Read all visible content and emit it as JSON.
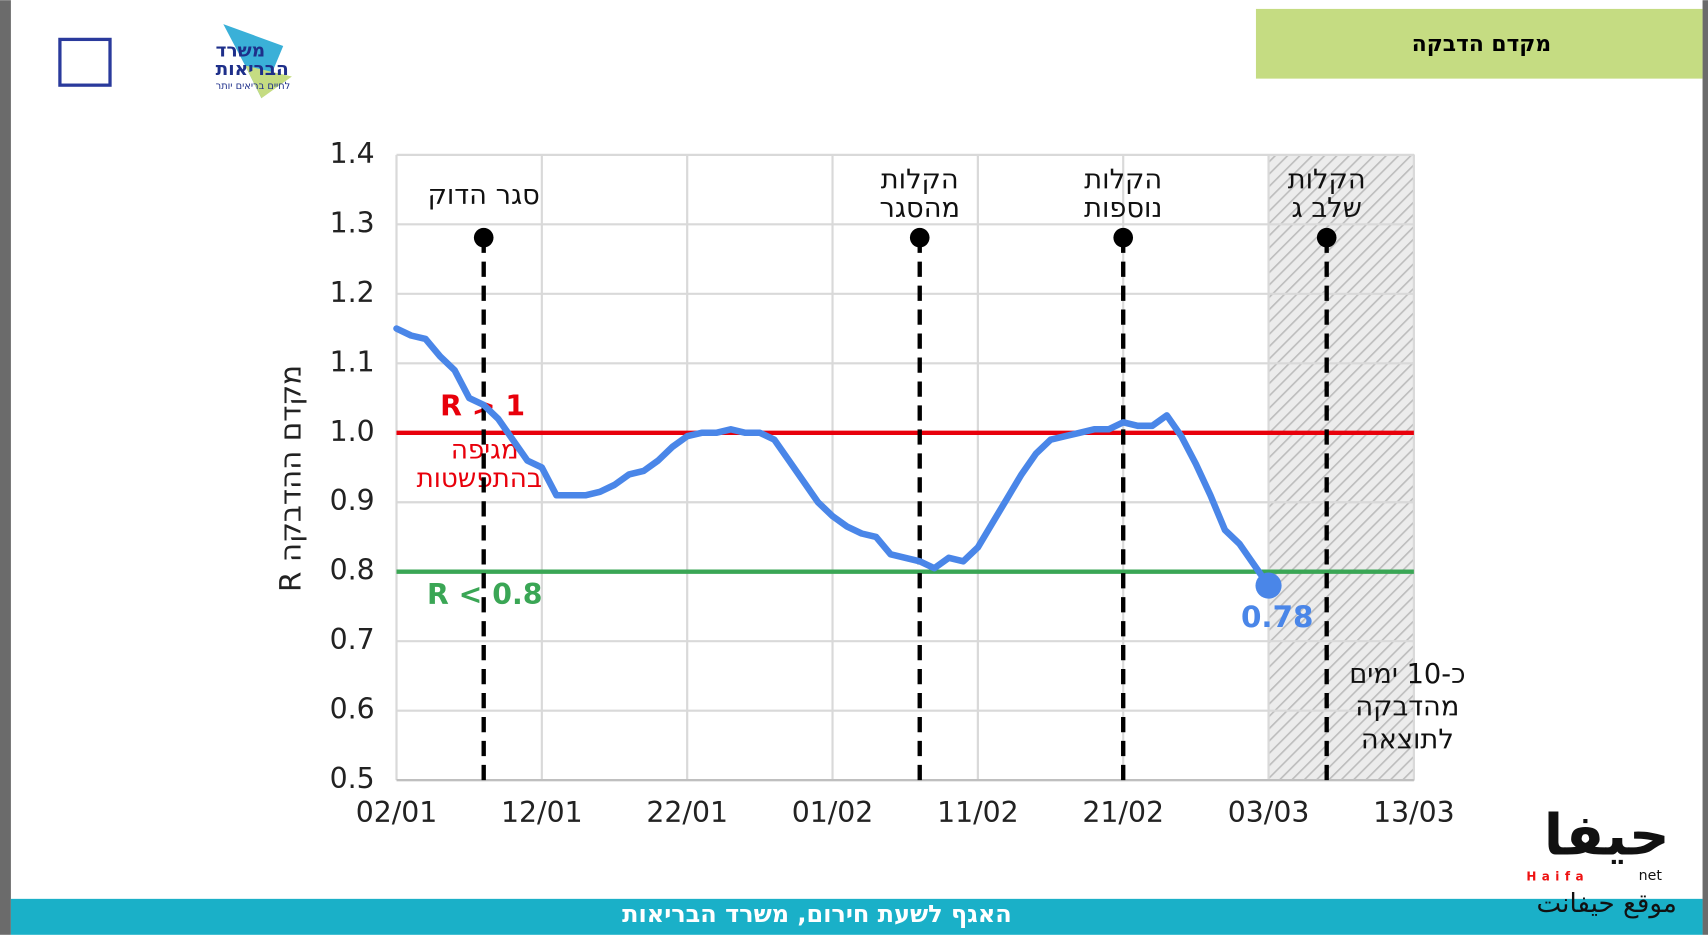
{
  "header": {
    "title": "מקדם הדבקה"
  },
  "logo": {
    "ministry": [
      "משרד",
      "הבריאות"
    ],
    "slogan": "לחיים בריאים יותר"
  },
  "watermark": {
    "brand": "حيفا",
    "sub": "Haifa",
    "net": "net",
    "site": "موقع حيفانت"
  },
  "footer": "האגף לשעת חירום, משרד הבריאות",
  "chart_data": {
    "type": "line",
    "y_label": "מקדם ההדבקה R",
    "x": [
      0,
      1,
      2,
      3,
      4,
      5,
      6,
      7,
      8,
      9,
      10,
      11,
      12,
      13,
      14,
      15,
      16,
      17,
      18,
      19,
      20,
      21,
      22,
      23,
      24,
      25,
      26,
      27,
      28,
      29,
      30,
      31,
      32,
      33,
      34,
      35,
      36,
      37,
      38,
      39,
      40,
      41,
      42,
      43,
      44,
      45,
      46,
      47,
      48,
      49,
      50,
      51,
      52,
      53,
      54,
      55,
      56,
      57,
      58,
      59,
      60
    ],
    "series": [
      {
        "color": "#4a86e8",
        "values": [
          1.15,
          1.14,
          1.135,
          1.11,
          1.09,
          1.05,
          1.04,
          1.02,
          0.99,
          0.96,
          0.95,
          0.91,
          0.91,
          0.91,
          0.915,
          0.925,
          0.94,
          0.945,
          0.96,
          0.98,
          0.995,
          1.0,
          1.0,
          1.005,
          1.0,
          1.0,
          0.99,
          0.96,
          0.93,
          0.9,
          0.88,
          0.865,
          0.855,
          0.85,
          0.825,
          0.82,
          0.815,
          0.805,
          0.82,
          0.815,
          0.835,
          0.87,
          0.905,
          0.94,
          0.97,
          0.99,
          0.995,
          1.0,
          1.005,
          1.005,
          1.015,
          1.01,
          1.01,
          1.025,
          0.995,
          0.955,
          0.91,
          0.86,
          0.84,
          0.81,
          0.78
        ],
        "value_labels": [
          null,
          null,
          null,
          null,
          null,
          null,
          null,
          null,
          null,
          null,
          null,
          null,
          null,
          null,
          null,
          null,
          null,
          null,
          null,
          null,
          null,
          null,
          null,
          null,
          null,
          null,
          null,
          null,
          null,
          null,
          null,
          null,
          null,
          null,
          null,
          null,
          null,
          null,
          null,
          null,
          null,
          null,
          null,
          null,
          null,
          null,
          null,
          null,
          null,
          null,
          null,
          null,
          null,
          null,
          null,
          null,
          null,
          null,
          null,
          null,
          "0.78"
        ]
      }
    ],
    "xlim": [
      0,
      70
    ],
    "xticks": [
      {
        "value": 0,
        "label": "02/01"
      },
      {
        "value": 10,
        "label": "12/01"
      },
      {
        "value": 20,
        "label": "22/01"
      },
      {
        "value": 30,
        "label": "01/02"
      },
      {
        "value": 40,
        "label": "11/02"
      },
      {
        "value": 50,
        "label": "21/02"
      },
      {
        "value": 60,
        "label": "03/03"
      },
      {
        "value": 70,
        "label": "13/03"
      }
    ],
    "ylim": [
      0.5,
      1.4
    ],
    "yticks": [
      0.5,
      0.6,
      0.7,
      0.8,
      0.9,
      {
        "value": 1,
        "label": "1.0"
      },
      1.1,
      1.2,
      1.3,
      1.4
    ],
    "grid": true,
    "reference_lines": [
      {
        "value": 1,
        "color": "#e8000b",
        "labels": [
          "R > 1",
          "מגיפה",
          "בהתפשטות"
        ]
      },
      {
        "value": 0.8,
        "color": "#3aa655",
        "labels": [
          "R < 0.8"
        ]
      }
    ],
    "events": [
      {
        "x": 6,
        "label": [
          "סגר הדוק"
        ]
      },
      {
        "x": 36,
        "label": [
          "הקלות",
          "מהסגר"
        ]
      },
      {
        "x": 50,
        "label": [
          "הקלות",
          "נוספות"
        ]
      },
      {
        "x": 64,
        "label": [
          "הקלות",
          "שלב ג"
        ]
      }
    ],
    "shaded": {
      "xrange": [
        60,
        70
      ]
    },
    "note": [
      "כ-10 ימים",
      "מהדבקה",
      "לתוצאה"
    ]
  }
}
